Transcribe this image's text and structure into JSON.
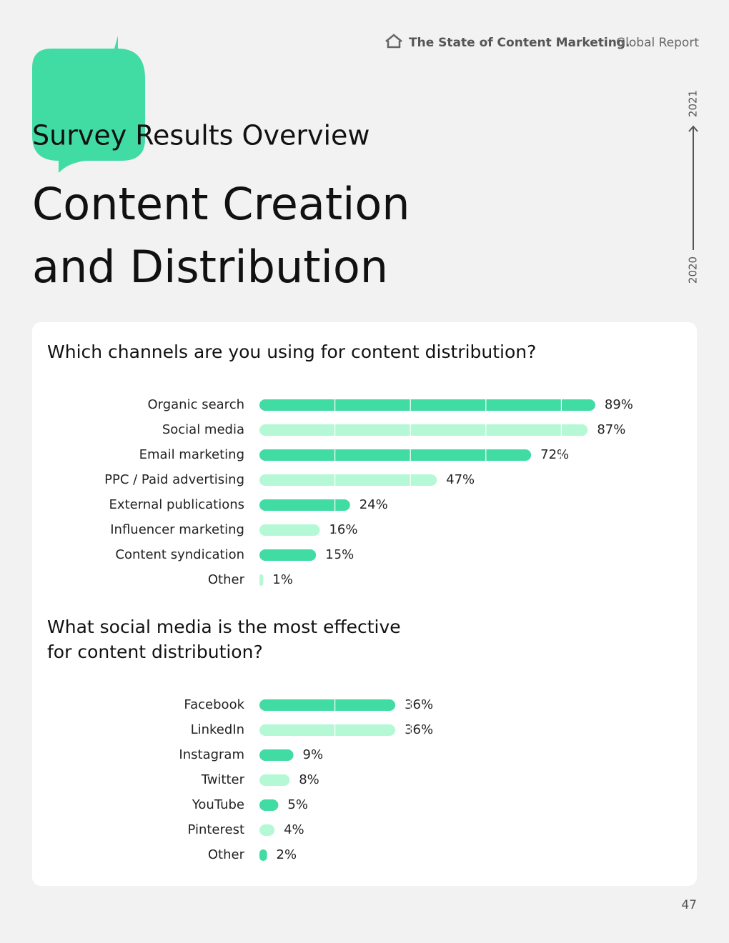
{
  "header": {
    "report_bold": "The State of Content Marketing.",
    "report_light": "Global Report",
    "year_end": "2021",
    "year_start": "2020"
  },
  "section": "Survey Results Overview",
  "title": [
    "Content Creation",
    "and Distribution"
  ],
  "page_number": "47",
  "chart_data": [
    {
      "type": "bar",
      "orientation": "horizontal",
      "title": [
        "Which channels are you using for content distribution?"
      ],
      "categories": [
        "Organic search",
        "Social media",
        "Email marketing",
        "PPC / Paid advertising",
        "External publications",
        "Influencer marketing",
        "Content syndication",
        "Other"
      ],
      "values": [
        89,
        87,
        72,
        47,
        24,
        16,
        15,
        1
      ],
      "value_labels": [
        "89%",
        "87%",
        "72%",
        "47%",
        "24%",
        "16%",
        "15%",
        "1%"
      ],
      "colors": [
        "#41dba4",
        "#b5f8d6"
      ],
      "xlim": [
        0,
        100
      ],
      "xticks": [
        20,
        40,
        60,
        80
      ],
      "grid": true
    },
    {
      "type": "bar",
      "orientation": "horizontal",
      "title": [
        "What social media is the most effective",
        "for content distribution?"
      ],
      "categories": [
        "Facebook",
        "LinkedIn",
        "Instagram",
        "Twitter",
        "YouTube",
        "Pinterest",
        "Other"
      ],
      "values": [
        36,
        36,
        9,
        8,
        5,
        4,
        2
      ],
      "value_labels": [
        "36%",
        "36%",
        "9%",
        "8%",
        "5%",
        "4%",
        "2%"
      ],
      "colors": [
        "#41dba4",
        "#b5f8d6"
      ],
      "xlim": [
        0,
        100
      ],
      "xticks": [
        20,
        40,
        60,
        80
      ],
      "grid": true
    }
  ]
}
